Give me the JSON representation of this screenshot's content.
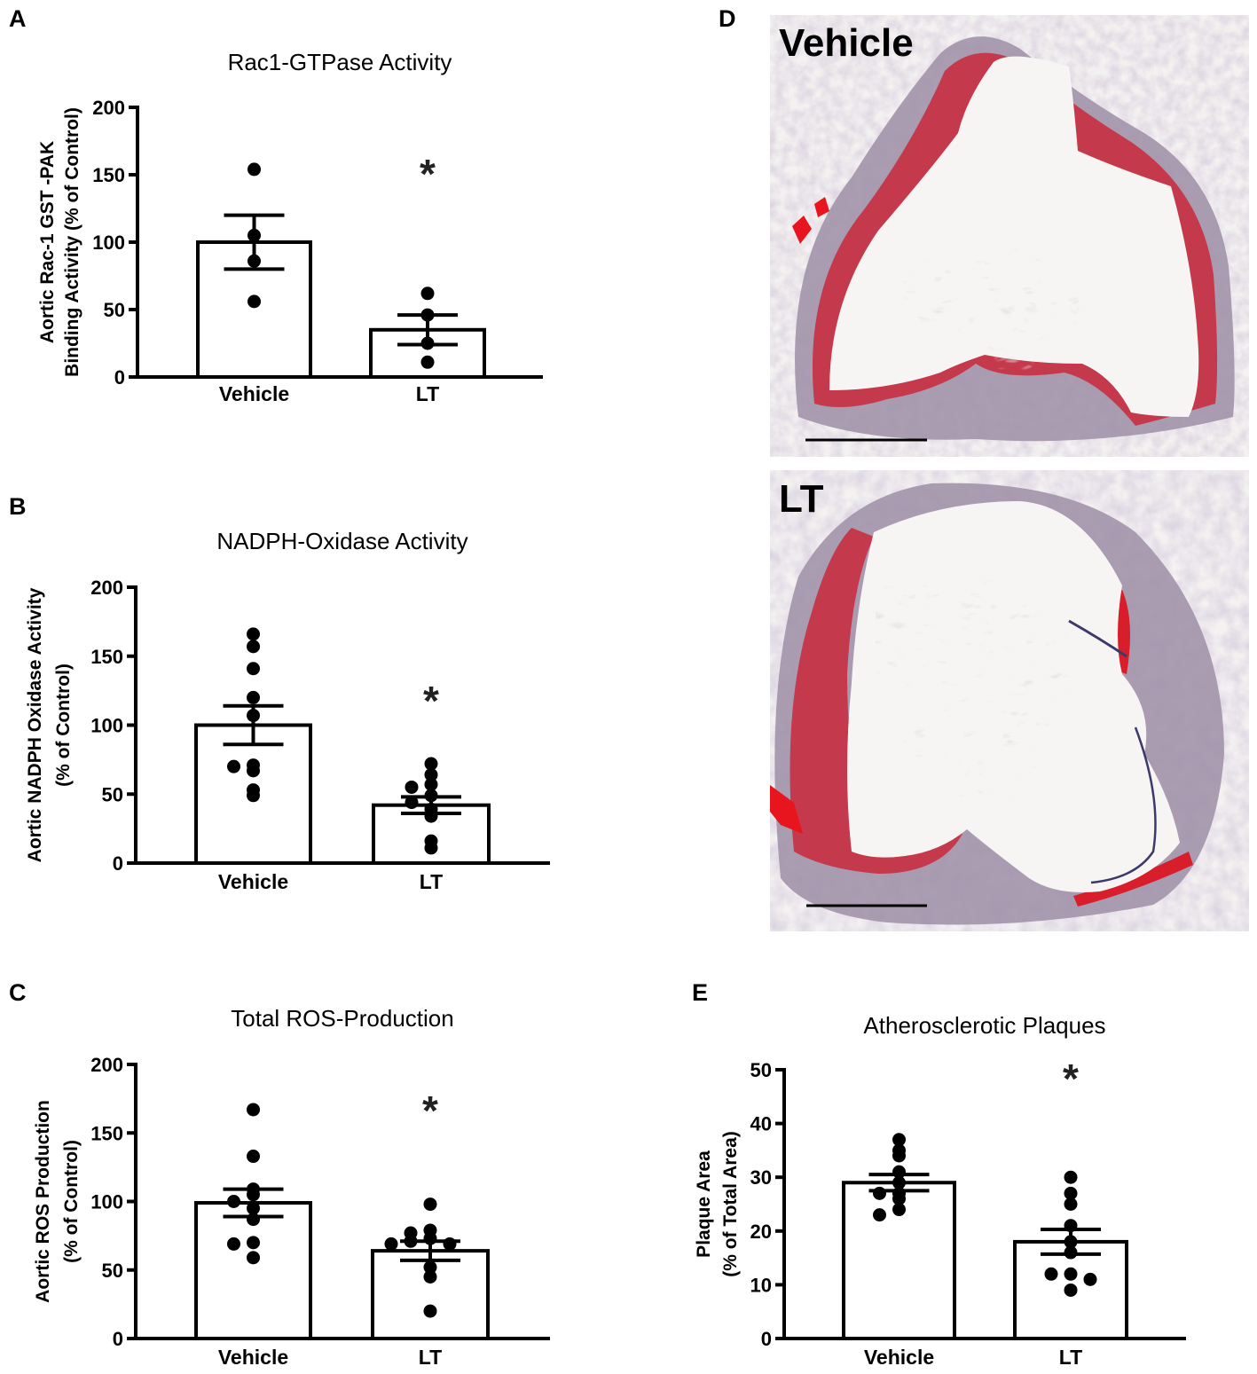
{
  "figure": {
    "panels": {
      "A": {
        "letter": "A",
        "title": "Rac1-GTPase Activity"
      },
      "B": {
        "letter": "B",
        "title": "NADPH-Oxidase Activity"
      },
      "C": {
        "letter": "C",
        "title": "Total ROS-Production"
      },
      "D": {
        "letter": "D",
        "images": [
          {
            "label": "Vehicle"
          },
          {
            "label": "LT"
          }
        ]
      },
      "E": {
        "letter": "E",
        "title": "Atherosclerotic Plaques"
      }
    }
  },
  "chart_data": [
    {
      "panel": "A",
      "type": "bar",
      "title": "Rac1-GTPase Activity",
      "xlabel": "",
      "ylabel": [
        "Aortic Rac-1 GST -PAK",
        "Binding Activity (% of Control)"
      ],
      "categories": [
        "Vehicle",
        "LT"
      ],
      "values": [
        100,
        35
      ],
      "sem": [
        20,
        11
      ],
      "points": [
        [
          154,
          105,
          86,
          56
        ],
        [
          62,
          46,
          25,
          11
        ]
      ],
      "ylim": [
        0,
        200
      ],
      "yticks": [
        0,
        50,
        100,
        150,
        200
      ],
      "significance": [
        "",
        "*"
      ],
      "grid": false,
      "legend": null
    },
    {
      "panel": "B",
      "type": "bar",
      "title": "NADPH-Oxidase Activity",
      "xlabel": "",
      "ylabel": [
        "Aortic NADPH Oxidase Activity",
        "(% of Control)"
      ],
      "categories": [
        "Vehicle",
        "LT"
      ],
      "values": [
        100,
        42
      ],
      "sem": [
        14,
        6
      ],
      "points": [
        [
          166,
          157,
          141,
          120,
          107,
          71,
          70,
          67,
          53,
          49
        ],
        [
          72,
          64,
          57,
          55,
          49,
          44,
          39,
          34,
          16,
          11
        ]
      ],
      "ylim": [
        0,
        200
      ],
      "yticks": [
        0,
        50,
        100,
        150,
        200
      ],
      "significance": [
        "",
        "*"
      ],
      "grid": false,
      "legend": null
    },
    {
      "panel": "C",
      "type": "bar",
      "title": "Total ROS-Production",
      "xlabel": "",
      "ylabel": [
        "Aortic ROS Production",
        "(% of Control)"
      ],
      "categories": [
        "Vehicle",
        "LT"
      ],
      "values": [
        99,
        64
      ],
      "sem": [
        10,
        7
      ],
      "points": [
        [
          167,
          133,
          109,
          105,
          100,
          95,
          87,
          70,
          69,
          59
        ],
        [
          98,
          79,
          77,
          73,
          71,
          69,
          69,
          52,
          45,
          20
        ]
      ],
      "ylim": [
        0,
        200
      ],
      "yticks": [
        0,
        50,
        100,
        150,
        200
      ],
      "significance": [
        "",
        "*"
      ],
      "grid": false,
      "legend": null
    },
    {
      "panel": "E",
      "type": "bar",
      "title": "Atherosclerotic Plaques",
      "xlabel": "",
      "ylabel": [
        "Plaque Area",
        "(% of Total Area)"
      ],
      "categories": [
        "Vehicle",
        "LT"
      ],
      "values": [
        29,
        18
      ],
      "sem": [
        1.5,
        2.3
      ],
      "points": [
        [
          37,
          35,
          34,
          31,
          29,
          27,
          27,
          26,
          24,
          23
        ],
        [
          30,
          27,
          25,
          21,
          18,
          16,
          12,
          12,
          11,
          9
        ]
      ],
      "ylim": [
        0,
        50
      ],
      "yticks": [
        0,
        10,
        20,
        30,
        40,
        50
      ],
      "significance": [
        "",
        "*"
      ],
      "grid": false,
      "legend": null
    }
  ]
}
